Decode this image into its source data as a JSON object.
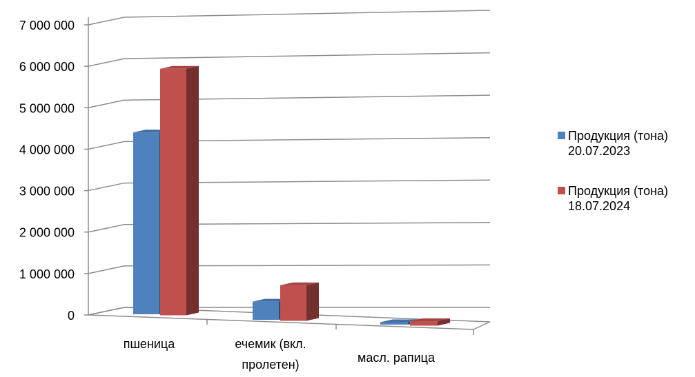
{
  "chart_data": {
    "type": "bar",
    "categories": [
      "пшеница",
      "ечемик (вкл.\nпролетен)",
      "масл. рапица"
    ],
    "series": [
      {
        "name": "Продукция (тона)\n20.07.2023",
        "color": "#4F81BD",
        "values": [
          4500000,
          450000,
          60000
        ]
      },
      {
        "name": "Продукция (тона)\n18.07.2024",
        "color": "#C0504D",
        "values": [
          6100000,
          880000,
          110000
        ]
      }
    ],
    "yticks": [
      "0",
      "1 000 000",
      "2 000 000",
      "3 000 000",
      "4 000 000",
      "5 000 000",
      "6 000 000",
      "7 000 000"
    ],
    "ylim": [
      0,
      7000000
    ],
    "grid": true,
    "legend_position": "right",
    "projection": "3d-perspective"
  }
}
